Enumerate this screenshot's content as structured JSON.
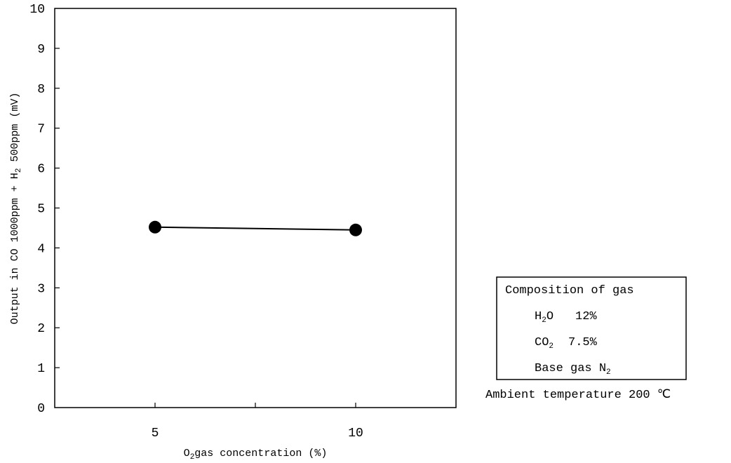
{
  "chart_data": {
    "type": "line",
    "x": [
      5,
      10
    ],
    "series": [
      {
        "values": [
          4.52,
          4.45
        ]
      }
    ],
    "x_ticks": [
      "5",
      "10"
    ],
    "y_ticks": [
      "0",
      "1",
      "2",
      "3",
      "4",
      "5",
      "6",
      "7",
      "8",
      "9",
      "10"
    ],
    "xlim": [
      2.5,
      12.5
    ],
    "ylim": [
      0,
      10
    ],
    "grid": false,
    "xlabel": {
      "pre": "O",
      "sub": "2",
      "post": "gas concentration (%)"
    },
    "ylabel": {
      "pre": "Output in CO 1000ppm + H",
      "sub": "2",
      "post": " 500ppm (mV)"
    },
    "marker_color": "#000000",
    "line_color": "#000000"
  },
  "legend_box": {
    "title": "Composition of gas",
    "h2o": {
      "pre": "H",
      "sub": "2",
      "post": "O",
      "value": "12%"
    },
    "co2": {
      "pre": "CO",
      "sub": "2",
      "value": "7.5%"
    },
    "base": {
      "pre": "Base gas  N",
      "sub": "2"
    }
  },
  "ambient": {
    "label": "Ambient temperature 200 ",
    "unit": "℃"
  }
}
